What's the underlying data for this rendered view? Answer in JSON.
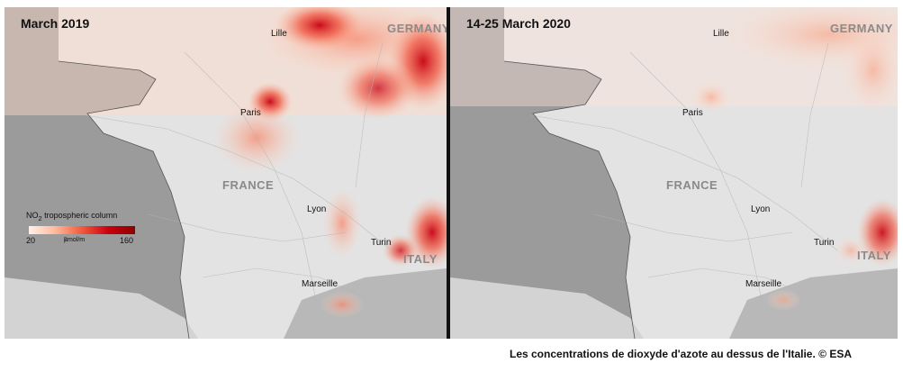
{
  "left_map": {
    "title": "March 2019",
    "labels": {
      "lille": "Lille",
      "germany": "GERMANY",
      "paris": "Paris",
      "france": "FRANCE",
      "lyon": "Lyon",
      "turin": "Turin",
      "italy": "ITALY",
      "marseille": "Marseille"
    }
  },
  "right_map": {
    "title": "14-25 March 2020",
    "labels": {
      "lille": "Lille",
      "germany": "GERMANY",
      "paris": "Paris",
      "france": "FRANCE",
      "lyon": "Lyon",
      "turin": "Turin",
      "italy": "ITALY",
      "marseille": "Marseille"
    }
  },
  "legend": {
    "title_prefix": "NO",
    "title_sub": "2",
    "title_suffix": " tropospheric column",
    "min": "20",
    "unit_prefix": "µmol/m",
    "unit_sup": "2",
    "max": "160"
  },
  "caption": "Les concentrations de dioxyde d'azote au dessus de l'Italie. © ESA",
  "colors": {
    "sea": "#9b9b9b",
    "land": "#e3e3e3",
    "no2_high": "#c80010",
    "no2_low": "#ffd9c8"
  }
}
